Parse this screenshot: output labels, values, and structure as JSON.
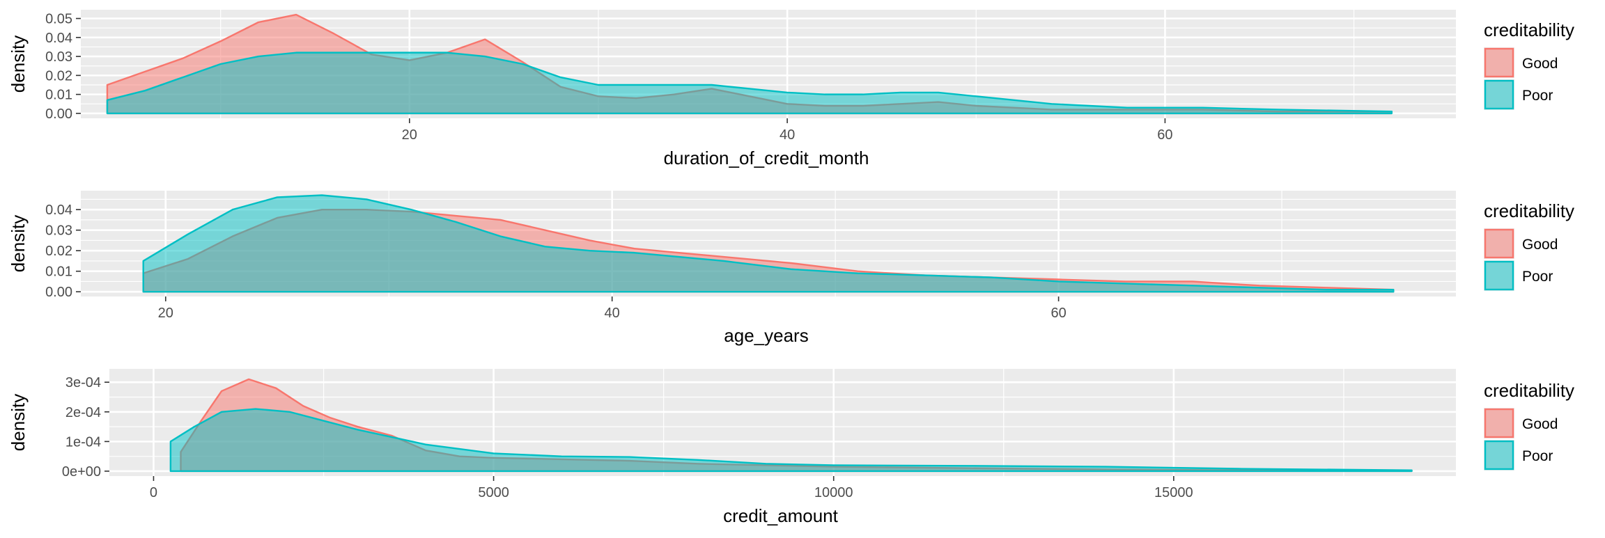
{
  "chart_data": [
    {
      "type": "area",
      "xlabel": "duration_of_credit_month",
      "ylabel": "density",
      "xlim": [
        2.6,
        75.4
      ],
      "ylim": [
        -0.0026,
        0.0546
      ],
      "x_ticks": [
        20,
        40,
        60
      ],
      "x_tick_labels": [
        "20",
        "40",
        "60"
      ],
      "y_ticks": [
        0.0,
        0.01,
        0.02,
        0.03,
        0.04,
        0.05
      ],
      "y_tick_labels": [
        "0.00",
        "0.01",
        "0.02",
        "0.03",
        "0.04",
        "0.05"
      ],
      "legend": {
        "title": "creditability",
        "position": "right",
        "entries": [
          "Good",
          "Poor"
        ]
      },
      "colors": {
        "Good": "#F8766D",
        "Poor": "#00BFC4"
      },
      "grid": true,
      "series": [
        {
          "name": "Good",
          "x": [
            4,
            6,
            8,
            10,
            12,
            14,
            16,
            18,
            20,
            22,
            24,
            26,
            28,
            30,
            32,
            34,
            36,
            38,
            40,
            42,
            44,
            46,
            48,
            50,
            54,
            58,
            62,
            66,
            72
          ],
          "y": [
            0.015,
            0.022,
            0.029,
            0.038,
            0.048,
            0.052,
            0.042,
            0.031,
            0.028,
            0.032,
            0.039,
            0.027,
            0.014,
            0.009,
            0.008,
            0.01,
            0.013,
            0.009,
            0.005,
            0.004,
            0.004,
            0.005,
            0.006,
            0.004,
            0.002,
            0.002,
            0.002,
            0.001,
            0.001
          ]
        },
        {
          "name": "Poor",
          "x": [
            4,
            6,
            8,
            10,
            12,
            14,
            16,
            18,
            20,
            22,
            24,
            26,
            28,
            30,
            32,
            34,
            36,
            38,
            40,
            42,
            44,
            46,
            48,
            50,
            54,
            58,
            62,
            66,
            72
          ],
          "y": [
            0.007,
            0.012,
            0.019,
            0.026,
            0.03,
            0.032,
            0.032,
            0.032,
            0.032,
            0.032,
            0.03,
            0.026,
            0.019,
            0.015,
            0.015,
            0.015,
            0.015,
            0.013,
            0.011,
            0.01,
            0.01,
            0.011,
            0.011,
            0.009,
            0.005,
            0.003,
            0.003,
            0.002,
            0.001
          ]
        }
      ]
    },
    {
      "type": "area",
      "xlabel": "age_years",
      "ylabel": "density",
      "xlim": [
        16.2,
        77.8
      ],
      "ylim": [
        -0.0023,
        0.0492
      ],
      "x_ticks": [
        20,
        40,
        60
      ],
      "x_tick_labels": [
        "20",
        "40",
        "60"
      ],
      "y_ticks": [
        0.0,
        0.01,
        0.02,
        0.03,
        0.04
      ],
      "y_tick_labels": [
        "0.00",
        "0.01",
        "0.02",
        "0.03",
        "0.04"
      ],
      "legend": {
        "title": "creditability",
        "position": "right",
        "entries": [
          "Good",
          "Poor"
        ]
      },
      "colors": {
        "Good": "#F8766D",
        "Poor": "#00BFC4"
      },
      "grid": true,
      "series": [
        {
          "name": "Good",
          "x": [
            19,
            21,
            23,
            25,
            27,
            29,
            31,
            33,
            35,
            37,
            39,
            41,
            43,
            45,
            48,
            51,
            54,
            57,
            60,
            63,
            66,
            69,
            72,
            75
          ],
          "y": [
            0.009,
            0.016,
            0.027,
            0.036,
            0.04,
            0.04,
            0.039,
            0.037,
            0.035,
            0.03,
            0.025,
            0.021,
            0.019,
            0.017,
            0.014,
            0.01,
            0.008,
            0.007,
            0.006,
            0.005,
            0.005,
            0.003,
            0.002,
            0.001
          ]
        },
        {
          "name": "Poor",
          "x": [
            19,
            21,
            23,
            25,
            27,
            29,
            31,
            33,
            35,
            37,
            39,
            41,
            43,
            45,
            48,
            51,
            54,
            57,
            60,
            63,
            66,
            69,
            72,
            75
          ],
          "y": [
            0.015,
            0.028,
            0.04,
            0.046,
            0.047,
            0.045,
            0.04,
            0.034,
            0.027,
            0.022,
            0.02,
            0.019,
            0.017,
            0.015,
            0.011,
            0.009,
            0.008,
            0.007,
            0.005,
            0.004,
            0.003,
            0.002,
            0.001,
            0.001
          ]
        }
      ]
    },
    {
      "type": "area",
      "xlabel": "credit_amount",
      "ylabel": "density",
      "xlim": [
        -650,
        19150
      ],
      "ylim": [
        -1.65e-05,
        0.000345
      ],
      "x_ticks": [
        0,
        5000,
        10000,
        15000
      ],
      "x_tick_labels": [
        "0",
        "5000",
        "10000",
        "15000"
      ],
      "y_ticks": [
        0.0,
        0.0001,
        0.0002,
        0.0003
      ],
      "y_tick_labels": [
        "0e+00",
        "1e-04",
        "2e-04",
        "3e-04"
      ],
      "legend": {
        "title": "creditability",
        "position": "right",
        "entries": [
          "Good",
          "Poor"
        ]
      },
      "colors": {
        "Good": "#F8766D",
        "Poor": "#00BFC4"
      },
      "grid": true,
      "series": [
        {
          "name": "Good",
          "x": [
            400,
            700,
            1000,
            1400,
            1800,
            2200,
            2600,
            3000,
            3500,
            4000,
            4500,
            5000,
            6000,
            7000,
            8000,
            9000,
            10000,
            12000,
            14000,
            16000,
            18500
          ],
          "y": [
            6.5e-05,
            0.00017,
            0.00027,
            0.00031,
            0.00028,
            0.00022,
            0.00018,
            0.00015,
            0.00012,
            7e-05,
            5e-05,
            4.5e-05,
            4e-05,
            3.5e-05,
            2.5e-05,
            2e-05,
            1.5e-05,
            1e-05,
            6e-06,
            3e-06,
            1e-06
          ]
        },
        {
          "name": "Poor",
          "x": [
            250,
            600,
            1000,
            1500,
            2000,
            2500,
            3000,
            3500,
            4000,
            5000,
            6000,
            7000,
            8000,
            9000,
            10000,
            12000,
            14000,
            16000,
            18500
          ],
          "y": [
            0.0001,
            0.00015,
            0.0002,
            0.00021,
            0.0002,
            0.00017,
            0.00014,
            0.000115,
            9e-05,
            6e-05,
            5e-05,
            4.8e-05,
            3.8e-05,
            2.5e-05,
            2e-05,
            1.8e-05,
            1.5e-05,
            8e-06,
            3e-06
          ]
        }
      ]
    }
  ]
}
